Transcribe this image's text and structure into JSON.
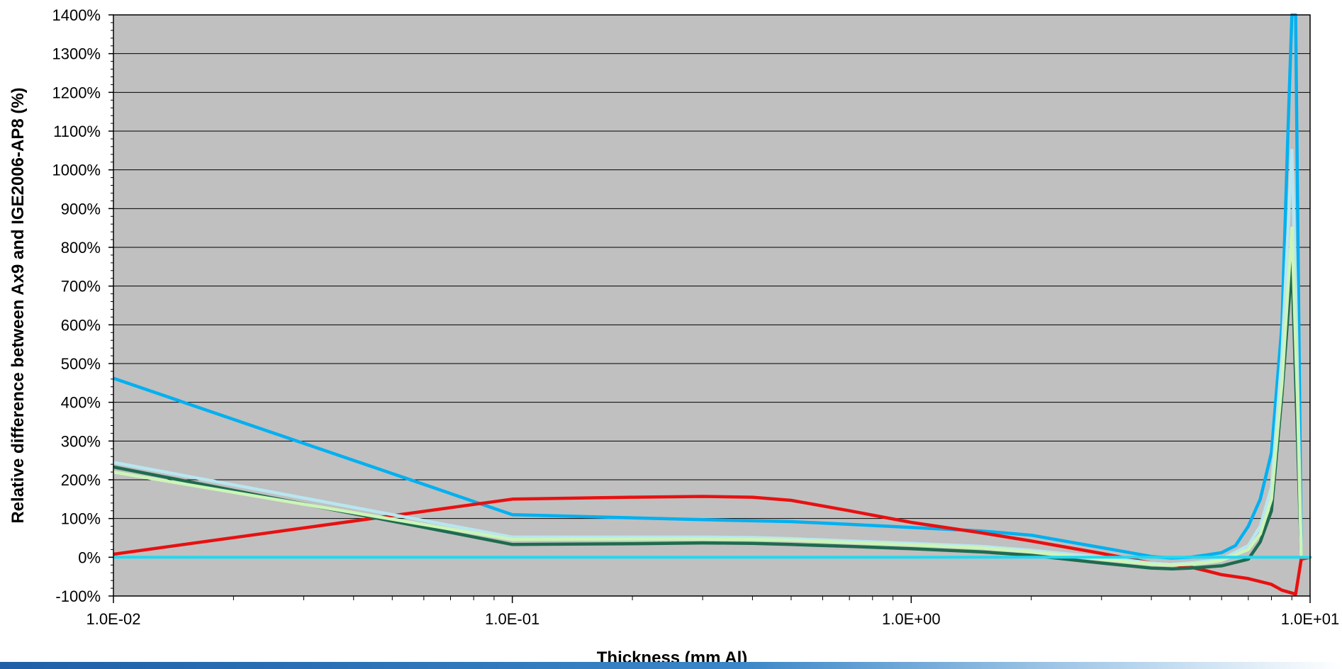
{
  "chart_data": {
    "type": "line",
    "title": "",
    "xlabel": "Thickness (mm Al)",
    "ylabel": "Relative difference between Ax9 and IGE2006-AP8 (%)",
    "xscale": "log",
    "xlim": [
      0.01,
      10
    ],
    "ylim": [
      -100,
      1400
    ],
    "x_ticks": [
      "1.0E-02",
      "1.0E-01",
      "1.0E+00",
      "1.0E+01"
    ],
    "y_ticks": [
      "-100%",
      "0%",
      "100%",
      "200%",
      "300%",
      "400%",
      "500%",
      "600%",
      "700%",
      "800%",
      "900%",
      "1000%",
      "1100%",
      "1200%",
      "1300%",
      "1400%"
    ],
    "grid": "horizontal",
    "legend": "none",
    "plot_background": "#c0c0c0",
    "series": [
      {
        "color": "#00b0f0",
        "points": [
          [
            0.01,
            462
          ],
          [
            0.1,
            110
          ],
          [
            0.3,
            97
          ],
          [
            0.5,
            92
          ],
          [
            0.7,
            85
          ],
          [
            1.0,
            77
          ],
          [
            1.5,
            68
          ],
          [
            2.0,
            57
          ],
          [
            3.0,
            25
          ],
          [
            4.0,
            2
          ],
          [
            4.5,
            -2
          ],
          [
            5.0,
            0
          ],
          [
            5.5,
            6
          ],
          [
            6.0,
            12
          ],
          [
            6.5,
            30
          ],
          [
            7.0,
            80
          ],
          [
            7.5,
            150
          ],
          [
            8.0,
            270
          ],
          [
            8.5,
            600
          ],
          [
            8.8,
            1100
          ],
          [
            9.0,
            1400
          ],
          [
            9.2,
            1400
          ],
          [
            9.5,
            0
          ],
          [
            10.0,
            0
          ]
        ]
      },
      {
        "color": "#e81010",
        "points": [
          [
            0.01,
            8
          ],
          [
            0.1,
            150
          ],
          [
            0.2,
            155
          ],
          [
            0.3,
            157
          ],
          [
            0.4,
            155
          ],
          [
            0.5,
            147
          ],
          [
            0.7,
            120
          ],
          [
            1.0,
            90
          ],
          [
            1.5,
            63
          ],
          [
            2.0,
            42
          ],
          [
            3.0,
            10
          ],
          [
            4.0,
            -15
          ],
          [
            4.5,
            -18
          ],
          [
            5.0,
            -25
          ],
          [
            5.5,
            -35
          ],
          [
            6.0,
            -45
          ],
          [
            7.0,
            -55
          ],
          [
            8.0,
            -70
          ],
          [
            8.5,
            -85
          ],
          [
            9.2,
            -95
          ],
          [
            9.5,
            -5
          ],
          [
            10.0,
            0
          ]
        ]
      },
      {
        "color": "#1f6b4f",
        "points": [
          [
            0.01,
            233
          ],
          [
            0.1,
            33
          ],
          [
            0.2,
            35
          ],
          [
            0.3,
            37
          ],
          [
            0.4,
            36
          ],
          [
            0.5,
            33
          ],
          [
            0.7,
            28
          ],
          [
            1.0,
            22
          ],
          [
            1.5,
            14
          ],
          [
            2.0,
            5
          ],
          [
            3.0,
            -15
          ],
          [
            4.0,
            -28
          ],
          [
            4.5,
            -30
          ],
          [
            5.0,
            -28
          ],
          [
            5.5,
            -25
          ],
          [
            6.0,
            -22
          ],
          [
            7.0,
            -5
          ],
          [
            7.5,
            40
          ],
          [
            8.0,
            120
          ],
          [
            8.5,
            420
          ],
          [
            9.0,
            760
          ],
          [
            9.3,
            300
          ],
          [
            9.5,
            0
          ],
          [
            10.0,
            0
          ]
        ]
      },
      {
        "color": "#b8e6f0",
        "points": [
          [
            0.01,
            245
          ],
          [
            0.1,
            52
          ],
          [
            0.2,
            52
          ],
          [
            0.3,
            52
          ],
          [
            0.4,
            51
          ],
          [
            0.5,
            48
          ],
          [
            0.7,
            42
          ],
          [
            1.0,
            36
          ],
          [
            1.5,
            28
          ],
          [
            2.0,
            18
          ],
          [
            3.0,
            0
          ],
          [
            4.0,
            -15
          ],
          [
            4.5,
            -18
          ],
          [
            5.0,
            -15
          ],
          [
            5.5,
            -10
          ],
          [
            6.0,
            -5
          ],
          [
            7.0,
            30
          ],
          [
            7.5,
            80
          ],
          [
            8.0,
            180
          ],
          [
            8.5,
            520
          ],
          [
            9.0,
            1050
          ],
          [
            9.2,
            700
          ],
          [
            9.5,
            0
          ],
          [
            10.0,
            0
          ]
        ]
      },
      {
        "color": "#ccf5b8",
        "points": [
          [
            0.01,
            220
          ],
          [
            0.1,
            46
          ],
          [
            0.2,
            47
          ],
          [
            0.3,
            47
          ],
          [
            0.4,
            46
          ],
          [
            0.5,
            44
          ],
          [
            0.7,
            38
          ],
          [
            1.0,
            32
          ],
          [
            1.5,
            24
          ],
          [
            2.0,
            14
          ],
          [
            3.0,
            -5
          ],
          [
            4.0,
            -18
          ],
          [
            4.5,
            -20
          ],
          [
            5.0,
            -18
          ],
          [
            5.5,
            -14
          ],
          [
            6.0,
            -8
          ],
          [
            7.0,
            20
          ],
          [
            7.5,
            60
          ],
          [
            8.0,
            150
          ],
          [
            8.5,
            450
          ],
          [
            9.0,
            850
          ],
          [
            9.3,
            400
          ],
          [
            9.5,
            0
          ],
          [
            10.0,
            0
          ]
        ]
      },
      {
        "color": "#20d8f0",
        "points": [
          [
            0.01,
            0
          ],
          [
            0.1,
            0
          ],
          [
            1.0,
            0
          ],
          [
            10.0,
            0
          ]
        ]
      }
    ]
  }
}
